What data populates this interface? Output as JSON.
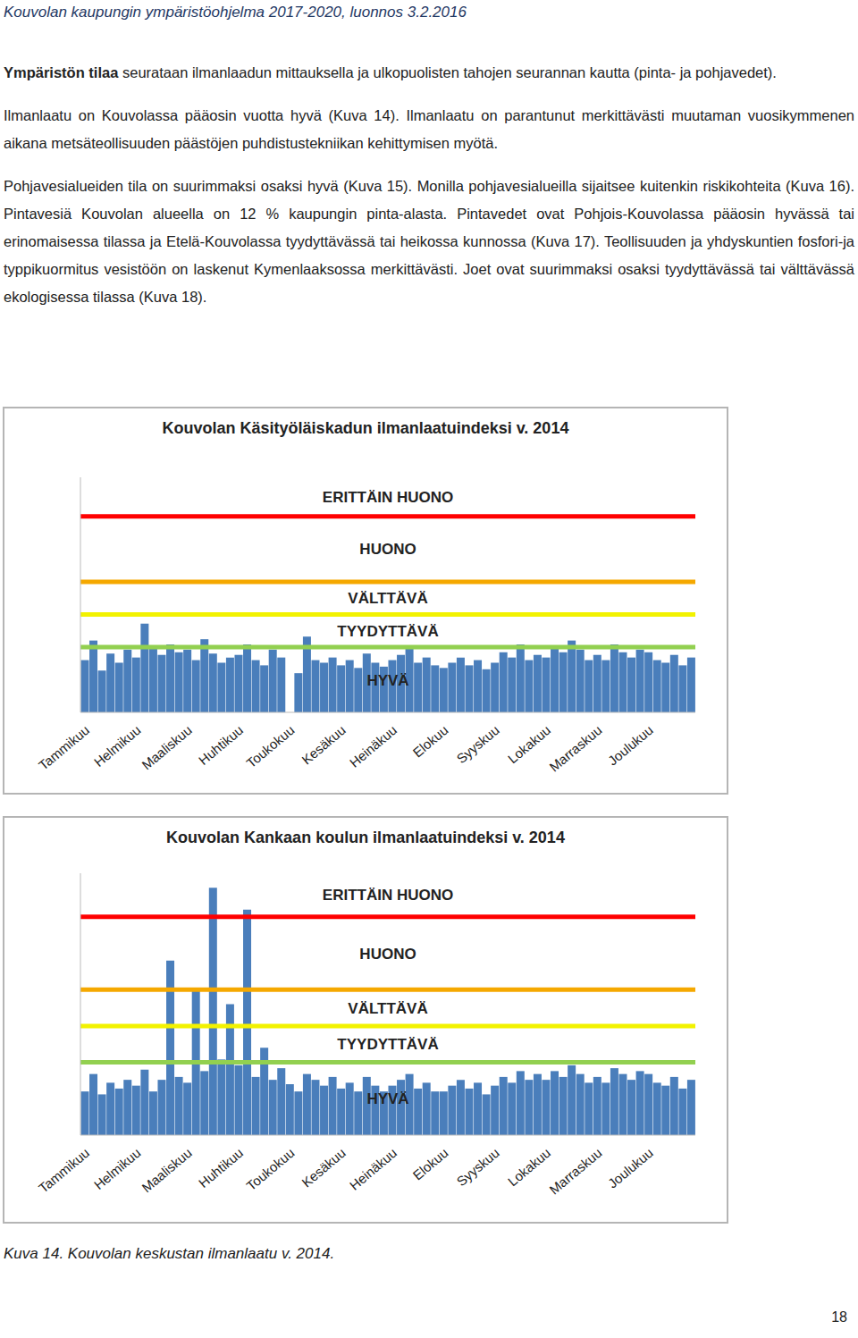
{
  "header": "Kouvolan kaupungin ympäristöohjelma 2017-2020, luonnos 3.2.2016",
  "paragraphs": [
    [
      {
        "text": "Ympäristön tilaa",
        "bold": true
      },
      {
        "text": " seurataan ilmanlaadun mittauksella ja ulkopuolisten tahojen seurannan kautta (pinta- ja pohjavedet)."
      }
    ],
    [
      {
        "text": "Ilmanlaatu on Kouvolassa pääosin vuotta hyvä (Kuva 14). Ilmanlaatu on parantunut merkittävästi muutaman vuosikymmenen aikana metsäteollisuuden päästöjen puhdistustekniikan kehittymisen myötä."
      }
    ],
    [
      {
        "text": "Pohjavesialueiden tila on suurimmaksi osaksi hyvä (Kuva 15). Monilla pohjavesialueilla sijaitsee kuitenkin riskikohteita (Kuva 16). Pintavesiä Kouvolan alueella on 12 % kaupungin pinta-alasta. Pintavedet ovat Pohjois-Kouvolassa pääosin hyvässä tai erinomaisessa tilassa ja Etelä-Kouvolassa tyydyttävässä tai heikossa kunnossa (Kuva 17). Teollisuuden ja yhdyskuntien fosfori-ja typpikuormitus vesistöön on laskenut Kymenlaaksossa merkittävästi. Joet ovat suurimmaksi osaksi tyydyttävässä tai välttävässä ekologisessa tilassa (Kuva 18)."
      }
    ]
  ],
  "chart_data": [
    {
      "type": "bar",
      "title": "Kouvolan Käsityöläiskadun ilmanlaatuindeksi v. 2014",
      "color": "#4a7ebb",
      "tick_labels": "x",
      "ylim": [
        0,
        180
      ],
      "categories": [
        "Tammikuu",
        null,
        null,
        null,
        null,
        null,
        "Helmikuu",
        null,
        null,
        null,
        null,
        null,
        "Maaliskuu",
        null,
        null,
        null,
        null,
        null,
        "Huhtikuu",
        null,
        null,
        null,
        null,
        null,
        "Toukokuu",
        null,
        null,
        null,
        null,
        null,
        "Kesäkuu",
        null,
        null,
        null,
        null,
        null,
        "Heinäkuu",
        null,
        null,
        null,
        null,
        null,
        "Elokuu",
        null,
        null,
        null,
        null,
        null,
        "Syyskuu",
        null,
        null,
        null,
        null,
        null,
        "Lokakuu",
        null,
        null,
        null,
        null,
        null,
        "Marraskuu",
        null,
        null,
        null,
        null,
        null,
        "Joulukuu",
        null,
        null,
        null,
        null,
        null
      ],
      "values": [
        40,
        55,
        32,
        45,
        38,
        48,
        42,
        68,
        50,
        44,
        52,
        46,
        48,
        40,
        56,
        45,
        38,
        42,
        44,
        52,
        40,
        36,
        48,
        42,
        null,
        30,
        58,
        40,
        38,
        42,
        36,
        40,
        34,
        45,
        38,
        35,
        40,
        44,
        50,
        38,
        42,
        36,
        34,
        38,
        42,
        36,
        40,
        33,
        38,
        46,
        42,
        52,
        40,
        44,
        42,
        50,
        46,
        55,
        48,
        40,
        44,
        40,
        52,
        46,
        42,
        48,
        46,
        40,
        38,
        44,
        36,
        42
      ],
      "bands": [
        {
          "label": "HYVÄ",
          "from": 0,
          "to": 50,
          "line_color": "#92d050"
        },
        {
          "label": "TYYDYTTÄVÄ",
          "from": 50,
          "to": 75,
          "line_color": "#f2f200"
        },
        {
          "label": "VÄLTTÄVÄ",
          "from": 75,
          "to": 100,
          "line_color": "#f5a800"
        },
        {
          "label": "HUONO",
          "from": 100,
          "to": 150,
          "line_color": "#ff0000"
        },
        {
          "label": "ERITTÄIN HUONO",
          "from": 150,
          "to": 180
        }
      ]
    },
    {
      "type": "bar",
      "title": "Kouvolan Kankaan koulun ilmanlaatuindeksi v. 2014",
      "color": "#4a7ebb",
      "tick_labels": "x",
      "ylim": [
        0,
        180
      ],
      "categories": [
        "Tammikuu",
        null,
        null,
        null,
        null,
        null,
        "Helmikuu",
        null,
        null,
        null,
        null,
        null,
        "Maaliskuu",
        null,
        null,
        null,
        null,
        null,
        "Huhtikuu",
        null,
        null,
        null,
        null,
        null,
        "Toukokuu",
        null,
        null,
        null,
        null,
        null,
        "Kesäkuu",
        null,
        null,
        null,
        null,
        null,
        "Heinäkuu",
        null,
        null,
        null,
        null,
        null,
        "Elokuu",
        null,
        null,
        null,
        null,
        null,
        "Syyskuu",
        null,
        null,
        null,
        null,
        null,
        "Lokakuu",
        null,
        null,
        null,
        null,
        null,
        "Marraskuu",
        null,
        null,
        null,
        null,
        null,
        "Joulukuu",
        null,
        null,
        null,
        null,
        null
      ],
      "values": [
        30,
        42,
        28,
        36,
        32,
        38,
        34,
        45,
        30,
        38,
        120,
        40,
        36,
        100,
        44,
        170,
        52,
        90,
        48,
        155,
        40,
        60,
        38,
        46,
        35,
        30,
        42,
        38,
        34,
        40,
        32,
        36,
        30,
        40,
        34,
        30,
        34,
        38,
        42,
        32,
        36,
        30,
        30,
        34,
        38,
        32,
        36,
        28,
        34,
        40,
        36,
        44,
        38,
        42,
        38,
        44,
        40,
        48,
        42,
        36,
        40,
        36,
        46,
        42,
        38,
        44,
        42,
        36,
        34,
        40,
        32,
        38
      ],
      "bands": [
        {
          "label": "HYVÄ",
          "from": 0,
          "to": 50,
          "line_color": "#92d050"
        },
        {
          "label": "TYYDYTTÄVÄ",
          "from": 50,
          "to": 75,
          "line_color": "#f2f200"
        },
        {
          "label": "VÄLTTÄVÄ",
          "from": 75,
          "to": 100,
          "line_color": "#f5a800"
        },
        {
          "label": "HUONO",
          "from": 100,
          "to": 150,
          "line_color": "#ff0000"
        },
        {
          "label": "ERITTÄIN HUONO",
          "from": 150,
          "to": 180
        }
      ]
    }
  ],
  "caption": "Kuva 14. Kouvolan keskustan ilmanlaatu v. 2014.",
  "page_number": "18"
}
